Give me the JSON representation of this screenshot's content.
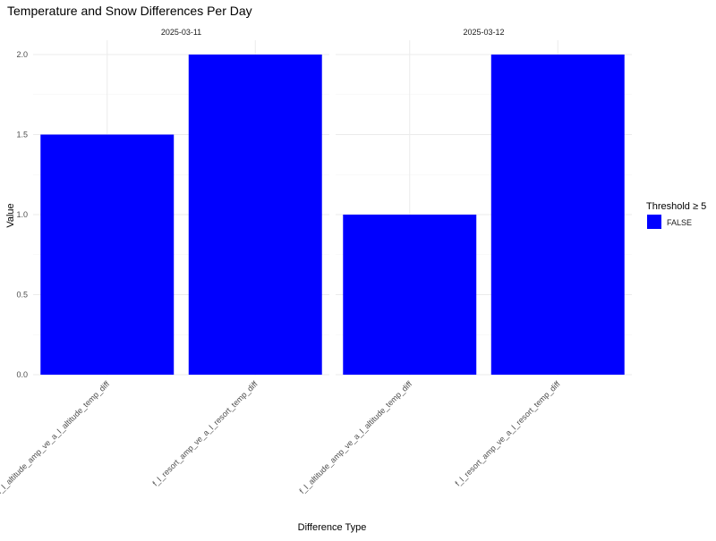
{
  "chart_data": {
    "type": "bar",
    "title": "Temperature and Snow Differences Per Day",
    "xlabel": "Difference Type",
    "ylabel": "Value",
    "ylim": [
      0,
      2.0
    ],
    "y_ticks": [
      "0.0",
      "0.5",
      "1.0",
      "1.5",
      "2.0"
    ],
    "grid": true,
    "legend": {
      "title": "Threshold ≥ 5",
      "position": "right",
      "entries": [
        {
          "label": "FALSE",
          "color": "#0000ff"
        }
      ]
    },
    "facets": [
      {
        "label": "2025-03-11",
        "categories": [
          "f_l_altitude_amp_ve_a_l_altitude_temp_diff",
          "f_l_resort_amp_ve_a_l_resort_temp_diff"
        ],
        "values": [
          1.5,
          2.0
        ]
      },
      {
        "label": "2025-03-12",
        "categories": [
          "f_l_altitude_amp_ve_a_l_altitude_temp_diff",
          "f_l_resort_amp_ve_a_l_resort_temp_diff"
        ],
        "values": [
          1.0,
          2.0
        ]
      }
    ],
    "bar_color": "#0000ff"
  }
}
